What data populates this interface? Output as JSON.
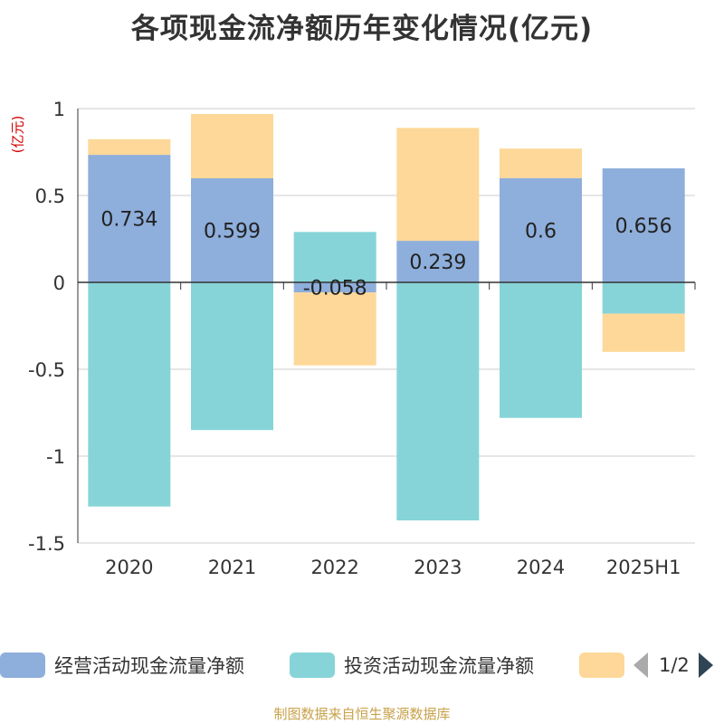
{
  "title": "各项现金流净额历年变化情况(亿元)",
  "unit_label": "(亿元)",
  "source": "制图数据来自恒生聚源数据库",
  "legend": {
    "items": [
      {
        "label": "经营活动现金流量净额",
        "color": "#8eaedb"
      },
      {
        "label": "投资活动现金流量净额",
        "color": "#86d4d8"
      },
      {
        "label": "",
        "color": "#fdd898"
      }
    ],
    "page": "1/2"
  },
  "chart_data": {
    "type": "bar",
    "stacked": true,
    "categories": [
      "2020",
      "2021",
      "2022",
      "2023",
      "2024",
      "2025H1"
    ],
    "series": [
      {
        "name": "经营活动现金流量净额",
        "color": "#8eaedb",
        "values": [
          0.734,
          0.599,
          -0.058,
          0.239,
          0.6,
          0.656
        ],
        "labels": [
          "0.734",
          "0.599",
          "-0.058",
          "0.239",
          "0.6",
          "0.656"
        ]
      },
      {
        "name": "投资活动现金流量净额",
        "color": "#86d4d8",
        "values": [
          -1.29,
          -0.85,
          0.29,
          -1.37,
          -0.78,
          -0.18
        ]
      },
      {
        "name": "",
        "color": "#fdd898",
        "values": [
          0.09,
          0.37,
          -0.42,
          0.65,
          0.17,
          -0.22
        ]
      }
    ],
    "yticks": [
      "1",
      "0.5",
      "0",
      "-0.5",
      "-1",
      "-1.5"
    ],
    "ytick_values": [
      1,
      0.5,
      0,
      -0.5,
      -1,
      -1.5
    ],
    "ylim": [
      -1.5,
      1
    ],
    "grid": true
  }
}
